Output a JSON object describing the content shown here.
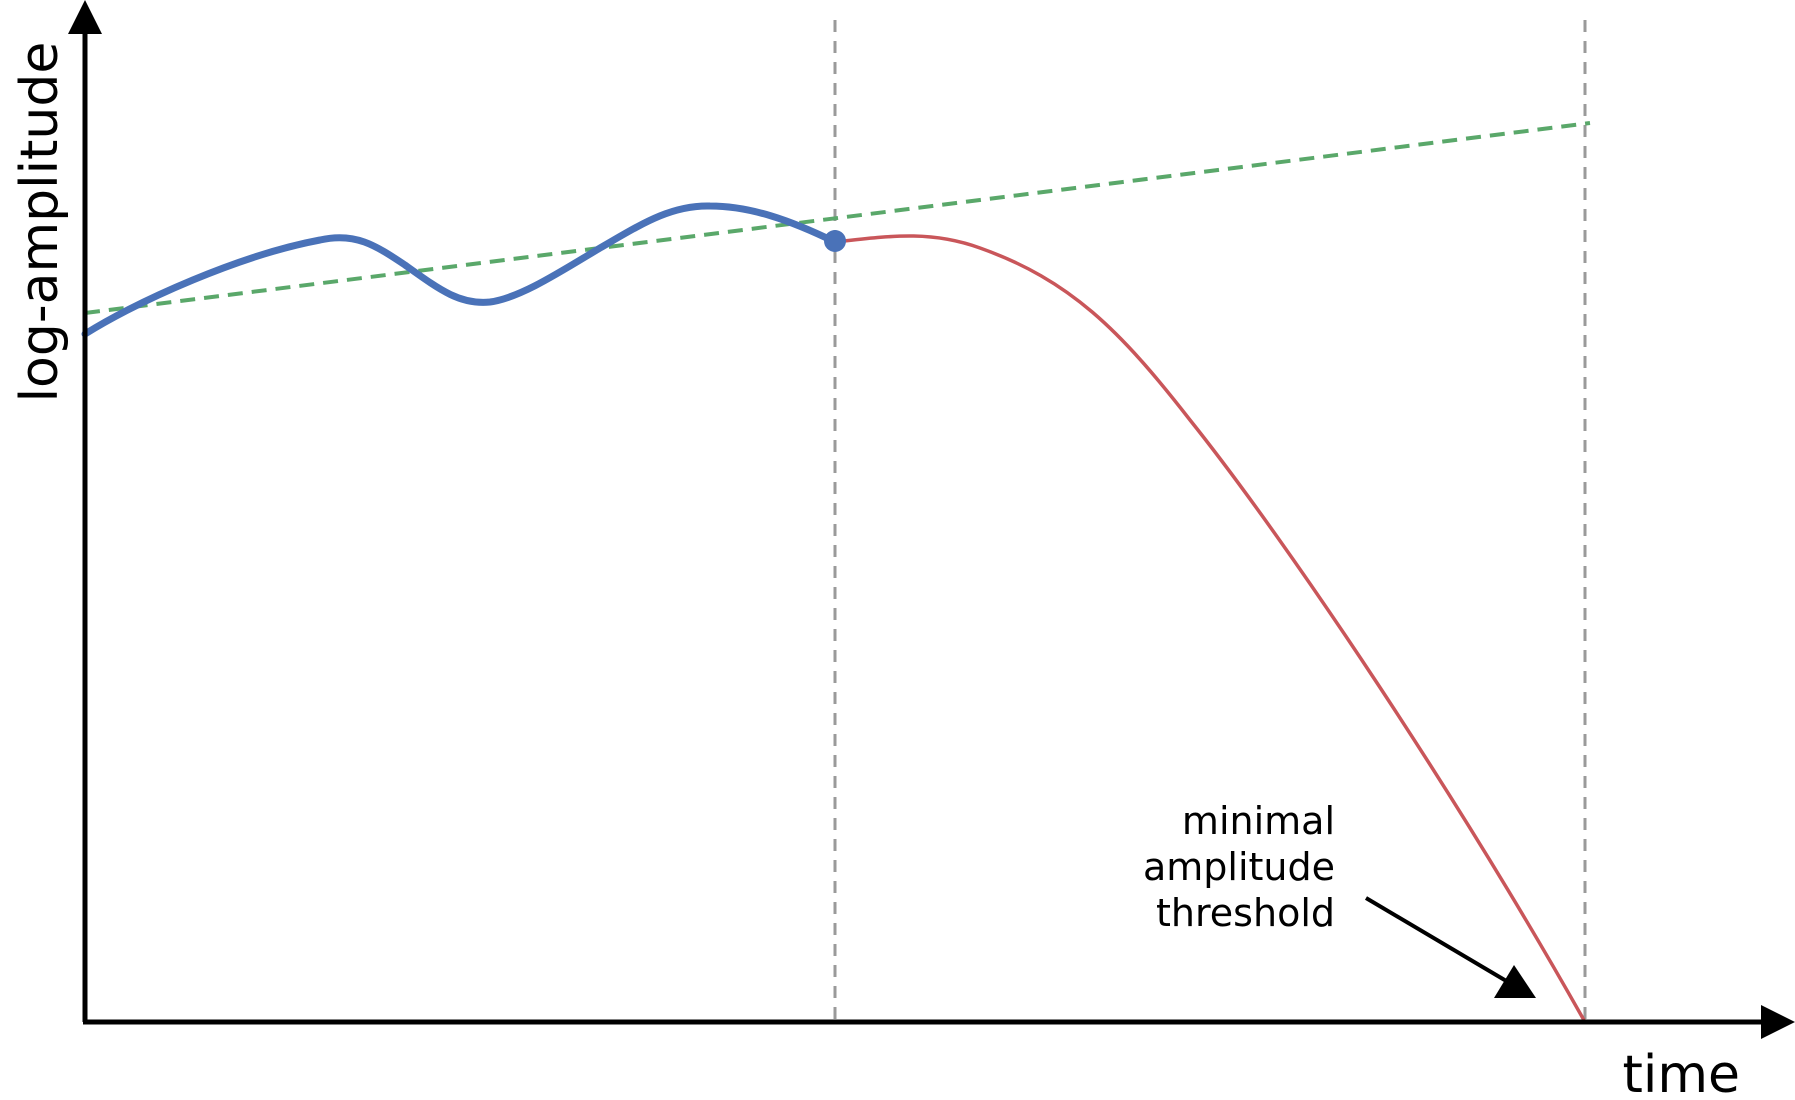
{
  "axes": {
    "x_label": "time",
    "y_label": "log-amplitude"
  },
  "annotation": {
    "lines": [
      "minimal",
      "amplitude",
      "threshold"
    ]
  },
  "series": {
    "observed": {
      "color": "#4a72b8"
    },
    "extrapolated_decay": {
      "color": "#c9565a"
    },
    "linear_trend": {
      "color": "#5aa86a"
    }
  },
  "guides": {
    "color": "#9a9a9a"
  },
  "axis_color": "#000000"
}
